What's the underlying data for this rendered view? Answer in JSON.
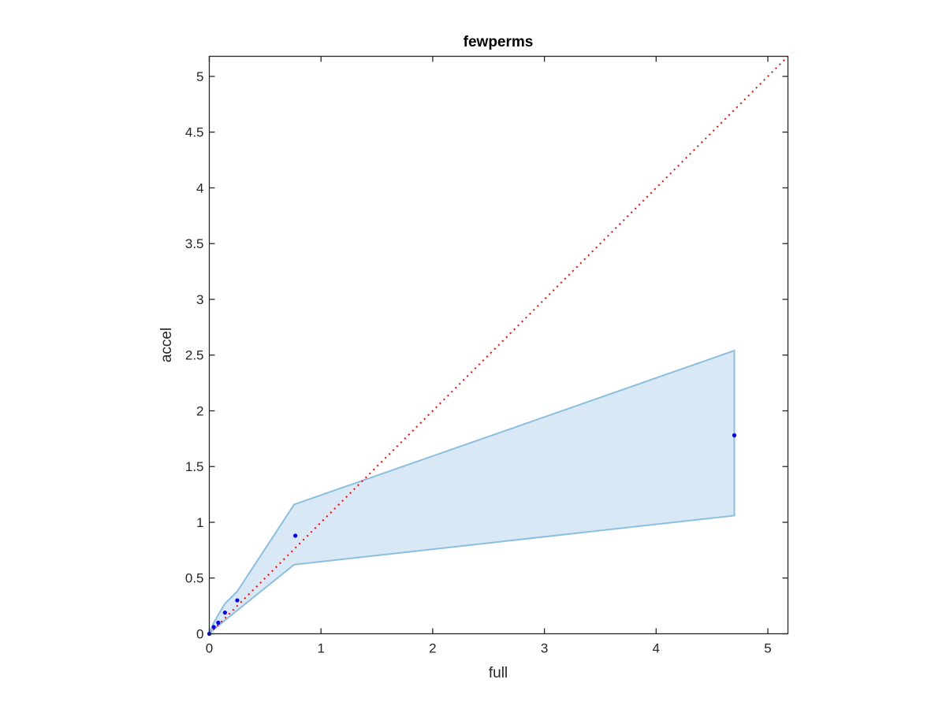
{
  "chart_data": {
    "type": "scatter",
    "title": "fewperms",
    "xlabel": "full",
    "ylabel": "accel",
    "xlim": [
      0,
      5.18
    ],
    "ylim": [
      0,
      5.18
    ],
    "xticks": [
      0,
      1,
      2,
      3,
      4,
      5
    ],
    "yticks": [
      0,
      0.5,
      1,
      1.5,
      2,
      2.5,
      3,
      3.5,
      4,
      4.5,
      5
    ],
    "xtick_labels": [
      "0",
      "1",
      "2",
      "3",
      "4",
      "5"
    ],
    "ytick_labels": [
      "0",
      "0.5",
      "1",
      "1.5",
      "2",
      "2.5",
      "3",
      "3.5",
      "4",
      "4.5",
      "5"
    ],
    "grid": false,
    "reference_line": {
      "style": "dotted",
      "color": "#ff0000",
      "x": [
        0,
        5.18
      ],
      "y": [
        0,
        5.18
      ]
    },
    "band": {
      "color": "#d9e8f5",
      "edge_color": "#8bbfdf",
      "x": [
        0,
        0.04,
        0.08,
        0.14,
        0.25,
        0.76,
        4.7
      ],
      "upper": [
        0,
        0.1,
        0.17,
        0.27,
        0.38,
        1.16,
        2.54
      ],
      "lower": [
        0,
        0.04,
        0.07,
        0.12,
        0.21,
        0.62,
        1.06
      ]
    },
    "series": [
      {
        "color": "#0000ff",
        "x": [
          0,
          0.04,
          0.08,
          0.14,
          0.25,
          0.77,
          4.7
        ],
        "y": [
          0,
          0.06,
          0.1,
          0.19,
          0.3,
          0.88,
          1.78
        ]
      }
    ]
  }
}
